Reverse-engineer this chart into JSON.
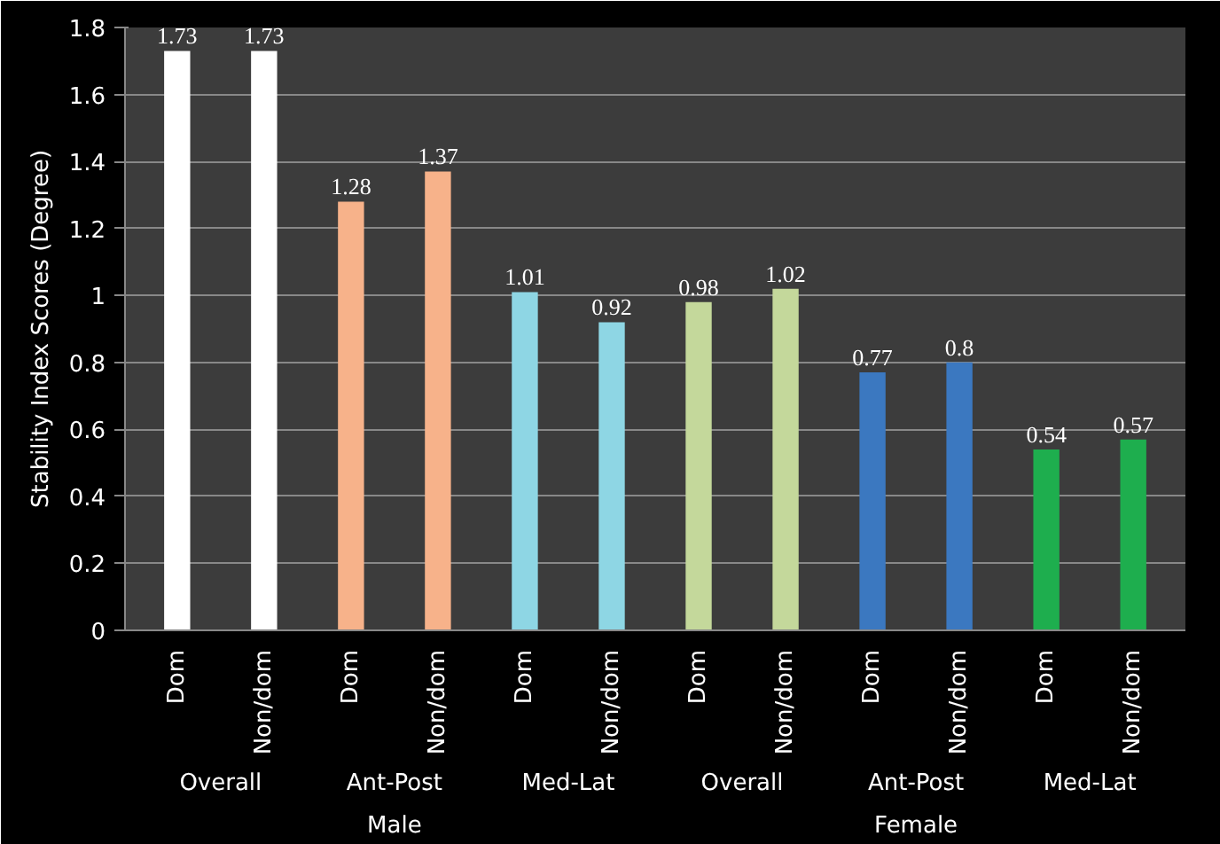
{
  "chart_data": {
    "type": "bar",
    "ylabel": "Stability Index Scores (Degree)",
    "categories": [
      "Dom",
      "Non/dom",
      "Dom",
      "Non/dom",
      "Dom",
      "Non/dom",
      "Dom",
      "Non/dom",
      "Dom",
      "Non/dom",
      "Dom",
      "Non/dom"
    ],
    "values": [
      1.73,
      1.73,
      1.28,
      1.37,
      1.01,
      0.92,
      0.98,
      1.02,
      0.77,
      0.8,
      0.54,
      0.57
    ],
    "colors": [
      "#ffffff",
      "#ffffff",
      "#f7b28a",
      "#f7b28a",
      "#8ed6e4",
      "#8ed6e4",
      "#c4d89b",
      "#c4d89b",
      "#3b78c0",
      "#3b78c0",
      "#1eae4e",
      "#1eae4e"
    ],
    "ylim": [
      0,
      1.8
    ],
    "yticks": [
      0,
      0.2,
      0.4,
      0.6,
      0.8,
      1,
      1.2,
      1.4,
      1.6,
      1.8
    ],
    "grid": "y",
    "data_labels": true,
    "annotations": [
      "Overall",
      "Ant-Post",
      "Med-Lat",
      "Overall",
      "Ant-Post",
      "Med-Lat",
      "Male",
      "Female"
    ]
  }
}
